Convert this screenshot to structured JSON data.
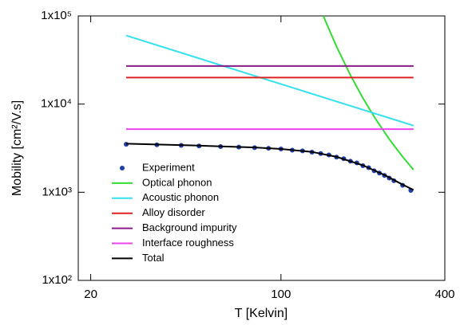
{
  "chart_data": {
    "type": "line",
    "xlabel": "T [Kelvin]",
    "ylabel": "Mobility [cm²/V.s]",
    "xscale": "log",
    "yscale": "log",
    "xlim": [
      18,
      400
    ],
    "ylim": [
      100,
      100000
    ],
    "xticks": [
      20,
      100,
      400
    ],
    "yticks": [
      {
        "value": 100,
        "label": "1x10²"
      },
      {
        "value": 1000,
        "label": "1x10³"
      },
      {
        "value": 10000,
        "label": "1x10⁴"
      },
      {
        "value": 100000,
        "label": "1x10⁵"
      }
    ],
    "legend": "lower-left",
    "series": [
      {
        "name": "Experiment",
        "color": "#1f3fa8",
        "marker": "dot",
        "x": [
          27,
          35,
          43,
          50,
          60,
          70,
          80,
          90,
          100,
          110,
          120,
          130,
          140,
          150,
          160,
          170,
          180,
          190,
          200,
          210,
          220,
          230,
          240,
          250,
          260,
          280,
          300
        ],
        "values": [
          3500,
          3450,
          3400,
          3350,
          3300,
          3250,
          3200,
          3150,
          3100,
          3000,
          2950,
          2850,
          2750,
          2650,
          2500,
          2400,
          2250,
          2150,
          2000,
          1900,
          1750,
          1650,
          1550,
          1450,
          1350,
          1200,
          1050
        ]
      },
      {
        "name": "Optical phonon",
        "color": "#33dd33",
        "marker": "line",
        "x": [
          143,
          160,
          180,
          200,
          222,
          250,
          280,
          307
        ],
        "values": [
          100000,
          45000,
          21300,
          11700,
          6870,
          4000,
          2520,
          1800
        ]
      },
      {
        "name": "Acoustic phonon",
        "color": "#33e0f0",
        "marker": "line",
        "x": [
          27,
          307
        ],
        "values": [
          60000,
          5700
        ]
      },
      {
        "name": "Alloy disorder",
        "color": "#dd2222",
        "marker": "line",
        "x": [
          27,
          307
        ],
        "values": [
          20000,
          20000
        ]
      },
      {
        "name": "Background impurity",
        "color": "#8a1a8a",
        "marker": "line",
        "x": [
          27,
          307
        ],
        "values": [
          27000,
          27000
        ]
      },
      {
        "name": "Interface roughness",
        "color": "#ee44ee",
        "marker": "line",
        "x": [
          27,
          307
        ],
        "values": [
          5200,
          5200
        ]
      },
      {
        "name": "Total",
        "color": "#000000",
        "marker": "line",
        "x": [
          27,
          50,
          80,
          100,
          130,
          160,
          200,
          240,
          280,
          307
        ],
        "values": [
          3550,
          3380,
          3220,
          3100,
          2870,
          2520,
          2020,
          1570,
          1220,
          1060
        ]
      }
    ]
  }
}
